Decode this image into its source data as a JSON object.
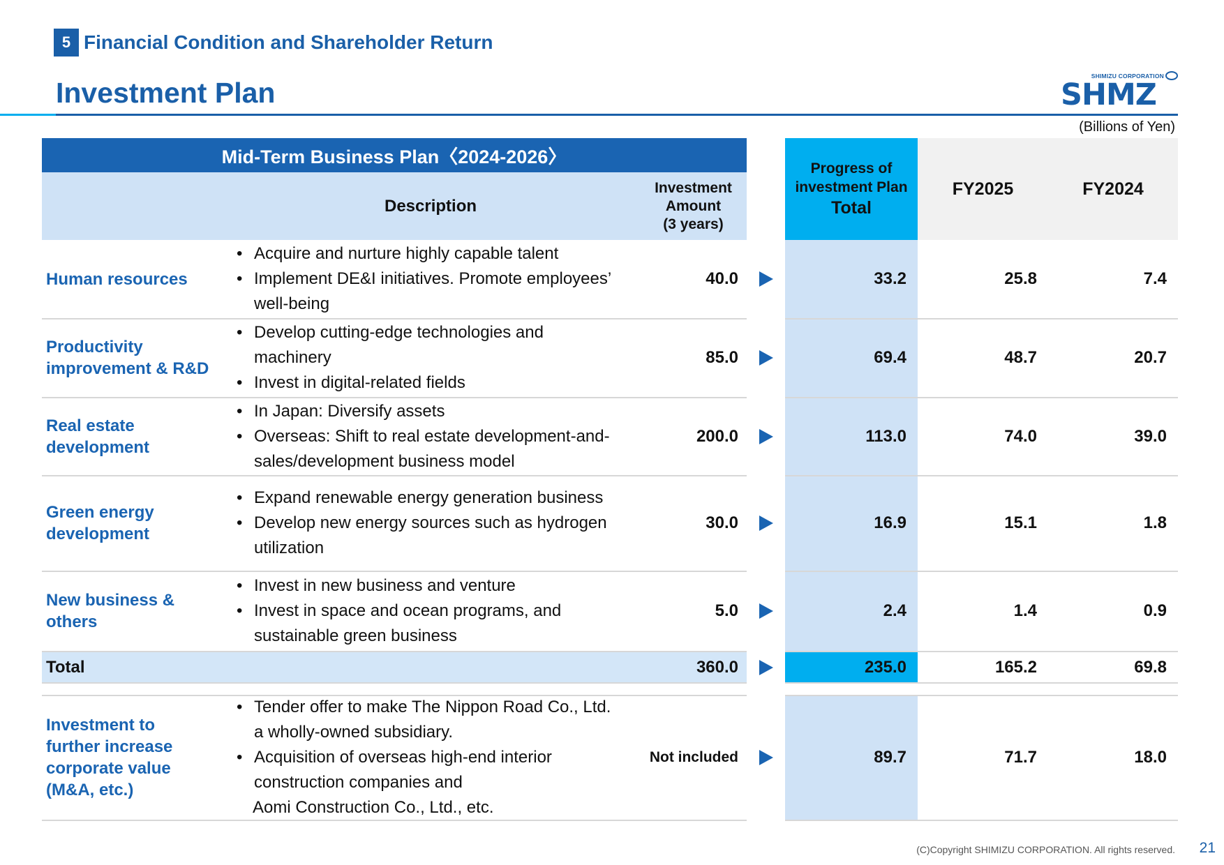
{
  "section": {
    "number": "5",
    "title": "Financial Condition and Shareholder Return"
  },
  "page_title": "Investment Plan",
  "logo": {
    "small_text": "SHIMIZU CORPORATION",
    "main_text": "SHMZ"
  },
  "units": "(Billions of Yen)",
  "table": {
    "plan_header": "Mid-Term Business Plan〈2024-2026〉",
    "description_header": "Description",
    "investment_header": [
      "Investment",
      "Amount",
      "(3 years)"
    ],
    "progress_header": [
      "Progress of",
      "investment Plan",
      "Total"
    ],
    "fy2025_header": "FY2025",
    "fy2024_header": "FY2024",
    "rows": [
      {
        "category": [
          "Human resources"
        ],
        "description": [
          {
            "type": "bullet",
            "text": "Acquire and nurture highly capable talent"
          },
          {
            "type": "bullet",
            "text": "Implement DE&I initiatives. Promote employees’"
          },
          {
            "type": "cont",
            "text": "well-being"
          }
        ],
        "investment": "40.0",
        "progress": "33.2",
        "fy2025": "25.8",
        "fy2024": "7.4"
      },
      {
        "category": [
          "Productivity",
          "improvement & R&D"
        ],
        "description": [
          {
            "type": "bullet",
            "text": "Develop cutting-edge technologies and"
          },
          {
            "type": "cont",
            "text": "machinery"
          },
          {
            "type": "bullet",
            "text": "Invest in digital-related fields"
          }
        ],
        "investment": "85.0",
        "progress": "69.4",
        "fy2025": "48.7",
        "fy2024": "20.7"
      },
      {
        "category": [
          "Real estate",
          "development"
        ],
        "description": [
          {
            "type": "bullet",
            "text": "In Japan: Diversify assets"
          },
          {
            "type": "bullet",
            "text": "Overseas: Shift to real estate development-and-"
          },
          {
            "type": "cont",
            "text": "sales/development business model"
          }
        ],
        "investment": "200.0",
        "progress": "113.0",
        "fy2025": "74.0",
        "fy2024": "39.0"
      },
      {
        "category": [
          "Green energy",
          "development"
        ],
        "description": [
          {
            "type": "bullet",
            "text": "Expand renewable energy generation business"
          },
          {
            "type": "bullet",
            "text": "Develop new energy sources such as hydrogen"
          },
          {
            "type": "cont",
            "text": "utilization"
          }
        ],
        "investment": "30.0",
        "progress": "16.9",
        "fy2025": "15.1",
        "fy2024": "1.8"
      },
      {
        "category": [
          "New business &",
          "others"
        ],
        "description": [
          {
            "type": "bullet",
            "text": "Invest in new business and venture"
          },
          {
            "type": "bullet",
            "text": "Invest in space and ocean programs, and"
          },
          {
            "type": "cont",
            "text": "sustainable green business"
          }
        ],
        "investment": "5.0",
        "progress": "2.4",
        "fy2025": "1.4",
        "fy2024": "0.9"
      }
    ],
    "total": {
      "label": "Total",
      "investment": "360.0",
      "progress": "235.0",
      "fy2025": "165.2",
      "fy2024": "69.8"
    },
    "ma_row": {
      "category": [
        "Investment to",
        "further increase",
        "corporate value",
        "(M&A, etc.)"
      ],
      "description": [
        {
          "type": "bullet",
          "text": "Tender offer to make The Nippon Road Co., Ltd."
        },
        {
          "type": "cont",
          "text": "a wholly-owned subsidiary."
        },
        {
          "type": "bullet",
          "text": "Acquisition of overseas high-end interior"
        },
        {
          "type": "cont",
          "text": "construction companies and"
        },
        {
          "type": "cont",
          "text": "Aomi Construction Co., Ltd., etc."
        }
      ],
      "investment": "Not included",
      "progress": "89.7",
      "fy2025": "71.7",
      "fy2024": "18.0"
    }
  },
  "footer": {
    "copyright": "(C)Copyright SHIMIZU CORPORATION. All rights reserved.",
    "page_number": "21"
  },
  "colors": {
    "brand_blue": "#1a64b2",
    "accent_cyan": "#00aeef",
    "light_blue": "#cfe2f6"
  }
}
